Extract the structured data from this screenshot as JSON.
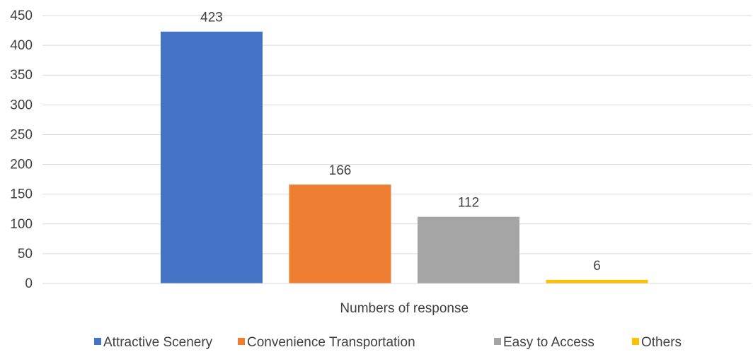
{
  "chart_data": {
    "type": "bar",
    "categories": [
      "Numbers of response"
    ],
    "series": [
      {
        "name": "Attractive Scenery",
        "values": [
          423
        ],
        "color": "#4472C4"
      },
      {
        "name": "Convenience Transportation",
        "values": [
          166
        ],
        "color": "#ED7D31"
      },
      {
        "name": "Easy to Access",
        "values": [
          112
        ],
        "color": "#A5A5A5"
      },
      {
        "name": "Others",
        "values": [
          6
        ],
        "color": "#FFC000"
      }
    ],
    "title": "",
    "xlabel": "",
    "ylabel": "",
    "ylim": [
      0,
      450
    ],
    "yticks": [
      0,
      50,
      100,
      150,
      200,
      250,
      300,
      350,
      400,
      450
    ],
    "grid": true,
    "legend": "bottom",
    "data_labels": true
  }
}
